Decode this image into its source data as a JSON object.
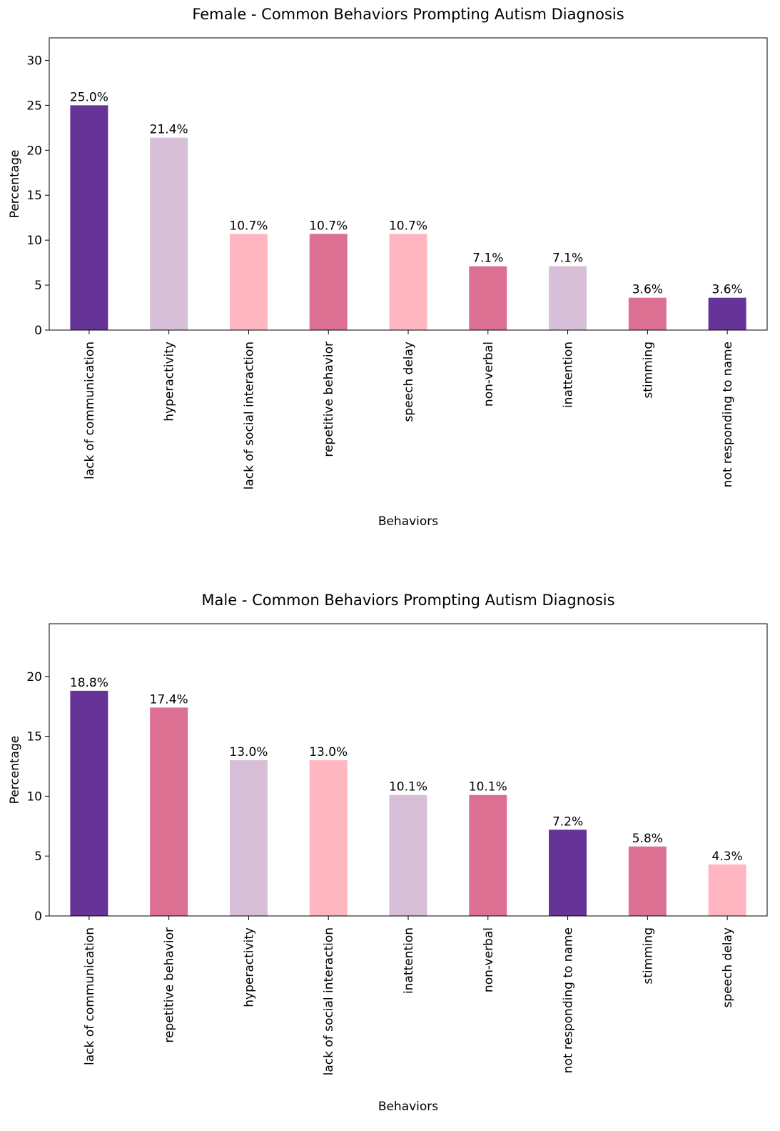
{
  "chart_data": [
    {
      "type": "bar",
      "title": "Female - Common Behaviors Prompting Autism Diagnosis",
      "xlabel": "Behaviors",
      "ylabel": "Percentage",
      "ylim": [
        0,
        32.5
      ],
      "yticks": [
        0,
        5,
        10,
        15,
        20,
        25,
        30
      ],
      "grid": false,
      "categories": [
        "lack of communication",
        "hyperactivity",
        "lack of social interaction",
        "repetitive behavior",
        "speech delay",
        "non-verbal",
        "inattention",
        "stimming",
        "not responding to name"
      ],
      "values": [
        25.0,
        21.4,
        10.7,
        10.7,
        10.7,
        7.1,
        7.1,
        3.6,
        3.6
      ],
      "data_labels": [
        "25.0%",
        "21.4%",
        "10.7%",
        "10.7%",
        "10.7%",
        "7.1%",
        "7.1%",
        "3.6%",
        "3.6%"
      ],
      "colors": [
        "#663399",
        "#D8BFD8",
        "#FFB6C1",
        "#DB7093",
        "#FFB6C1",
        "#DB7093",
        "#D8BFD8",
        "#DB7093",
        "#663399"
      ]
    },
    {
      "type": "bar",
      "title": "Male - Common Behaviors Prompting Autism Diagnosis",
      "xlabel": "Behaviors",
      "ylabel": "Percentage",
      "ylim": [
        0,
        24.4
      ],
      "yticks": [
        0,
        5,
        10,
        15,
        20
      ],
      "grid": false,
      "categories": [
        "lack of communication",
        "repetitive behavior",
        "hyperactivity",
        "lack of social interaction",
        "inattention",
        "non-verbal",
        "not responding to name",
        "stimming",
        "speech delay"
      ],
      "values": [
        18.8,
        17.4,
        13.0,
        13.0,
        10.1,
        10.1,
        7.2,
        5.8,
        4.3
      ],
      "data_labels": [
        "18.8%",
        "17.4%",
        "13.0%",
        "13.0%",
        "10.1%",
        "10.1%",
        "7.2%",
        "5.8%",
        "4.3%"
      ],
      "colors": [
        "#663399",
        "#DB7093",
        "#D8BFD8",
        "#FFB6C1",
        "#D8BFD8",
        "#DB7093",
        "#663399",
        "#DB7093",
        "#FFB6C1"
      ]
    }
  ]
}
